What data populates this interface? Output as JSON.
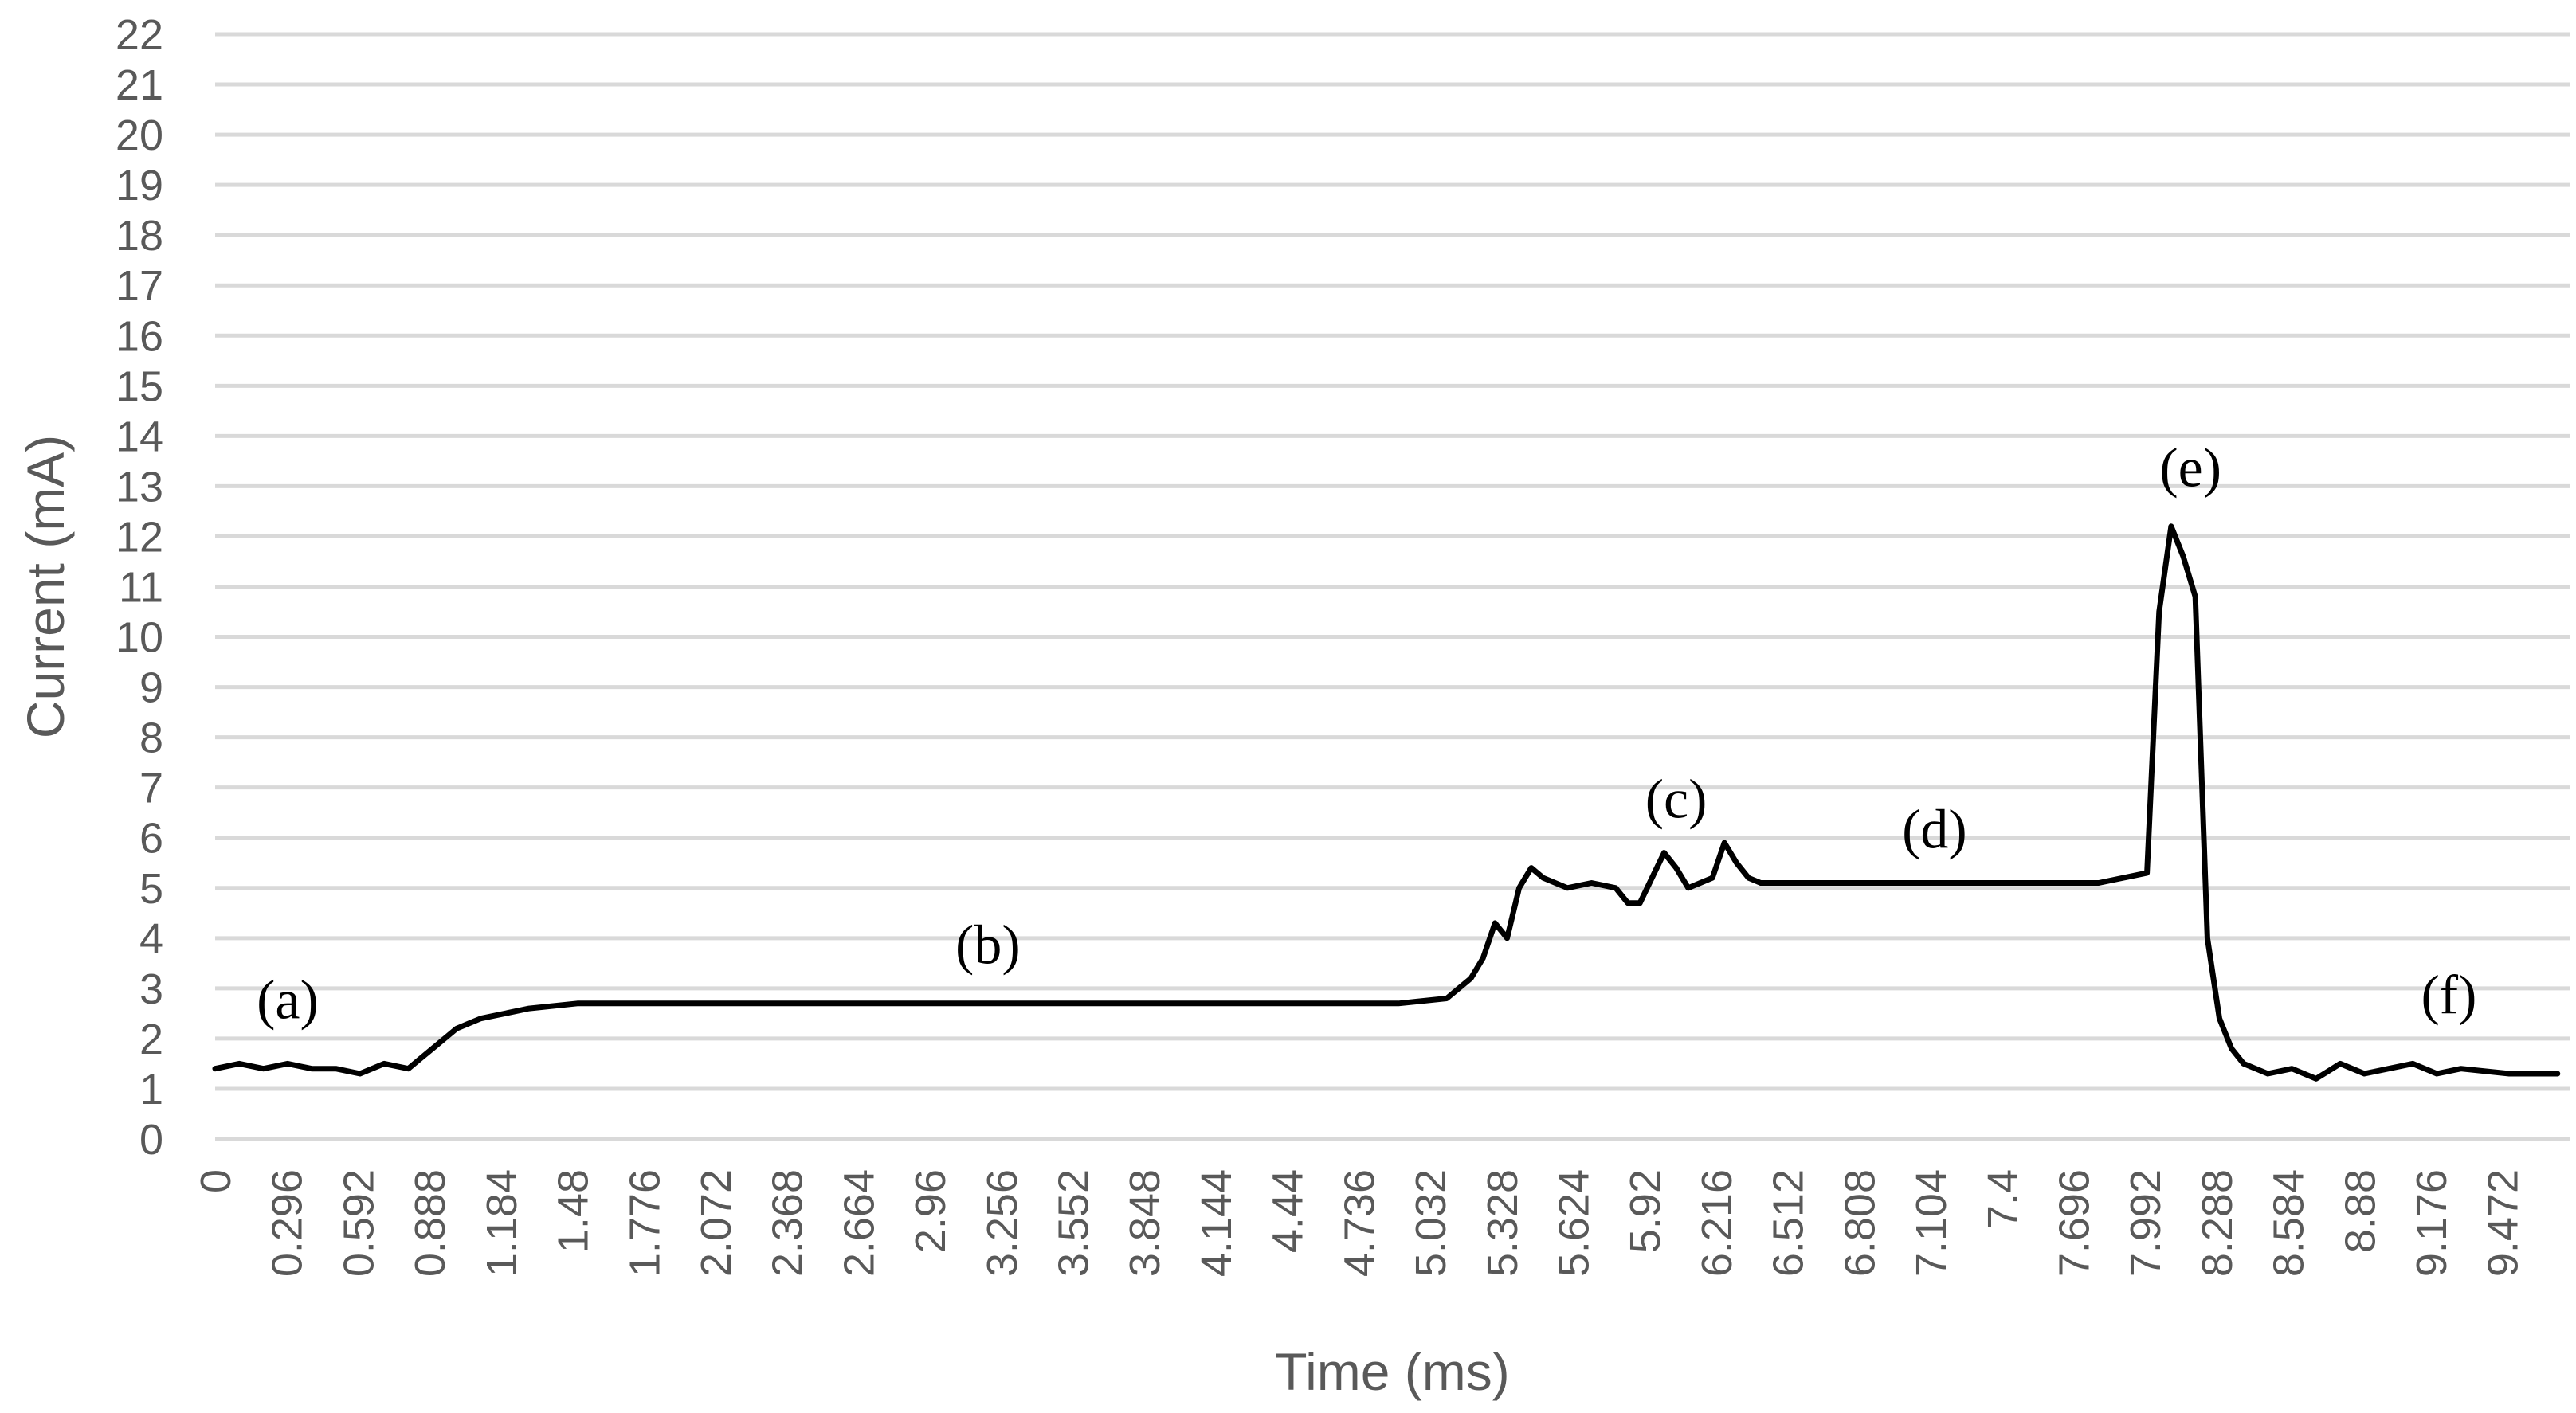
{
  "chart_data": {
    "type": "line",
    "title": "",
    "xlabel": "Time (ms)",
    "ylabel": "Current (mA)",
    "ylim": [
      0,
      22
    ],
    "xlim": [
      0,
      9.75
    ],
    "grid": true,
    "legend": "none",
    "y_ticks": [
      "0",
      "1",
      "2",
      "3",
      "4",
      "5",
      "6",
      "7",
      "8",
      "9",
      "10",
      "11",
      "12",
      "13",
      "14",
      "15",
      "16",
      "17",
      "18",
      "19",
      "20",
      "21",
      "22"
    ],
    "x_ticks": [
      "0",
      "0.296",
      "0.592",
      "0.888",
      "1.184",
      "1.48",
      "1.776",
      "2.072",
      "2.368",
      "2.664",
      "2.96",
      "3.256",
      "3.552",
      "3.848",
      "4.144",
      "4.44",
      "4.736",
      "5.032",
      "5.328",
      "5.624",
      "5.92",
      "6.216",
      "6.512",
      "6.808",
      "7.104",
      "7.4",
      "7.696",
      "7.992",
      "8.288",
      "8.584",
      "8.88",
      "9.176",
      "9.472"
    ],
    "series": [
      {
        "color": "#000000",
        "x": [
          0,
          0.1,
          0.2,
          0.3,
          0.4,
          0.5,
          0.6,
          0.7,
          0.8,
          0.85,
          0.9,
          0.95,
          1.0,
          1.05,
          1.1,
          1.2,
          1.3,
          1.5,
          2.0,
          2.5,
          3.0,
          3.5,
          4.0,
          4.5,
          4.9,
          5.1,
          5.15,
          5.2,
          5.25,
          5.3,
          5.35,
          5.4,
          5.45,
          5.5,
          5.6,
          5.7,
          5.8,
          5.85,
          5.9,
          5.95,
          6.0,
          6.05,
          6.1,
          6.15,
          6.2,
          6.25,
          6.3,
          6.35,
          6.4,
          6.5,
          6.6,
          7.0,
          7.4,
          7.8,
          8.0,
          8.05,
          8.1,
          8.15,
          8.2,
          8.25,
          8.3,
          8.35,
          8.4,
          8.45,
          8.5,
          8.6,
          8.7,
          8.8,
          8.9,
          9.0,
          9.1,
          9.2,
          9.3,
          9.5,
          9.7
        ],
        "y": [
          1.4,
          1.5,
          1.4,
          1.5,
          1.4,
          1.4,
          1.3,
          1.5,
          1.4,
          1.6,
          1.8,
          2.0,
          2.2,
          2.3,
          2.4,
          2.5,
          2.6,
          2.7,
          2.7,
          2.7,
          2.7,
          2.7,
          2.7,
          2.7,
          2.7,
          2.8,
          3.0,
          3.2,
          3.6,
          4.3,
          4.0,
          5.0,
          5.4,
          5.2,
          5.0,
          5.1,
          5.0,
          4.7,
          4.7,
          5.2,
          5.7,
          5.4,
          5.0,
          5.1,
          5.2,
          5.9,
          5.5,
          5.2,
          5.1,
          5.1,
          5.1,
          5.1,
          5.1,
          5.1,
          5.3,
          10.5,
          12.2,
          11.6,
          10.8,
          4.0,
          2.4,
          1.8,
          1.5,
          1.4,
          1.3,
          1.4,
          1.2,
          1.5,
          1.3,
          1.4,
          1.5,
          1.3,
          1.4,
          1.3,
          1.3
        ]
      }
    ],
    "annotations": [
      {
        "label": "(a)",
        "x": 0.3,
        "y": 2.4
      },
      {
        "label": "(b)",
        "x": 3.2,
        "y": 3.5
      },
      {
        "label": "(c)",
        "x": 6.05,
        "y": 6.4
      },
      {
        "label": "(d)",
        "x": 7.12,
        "y": 5.8
      },
      {
        "label": "(e)",
        "x": 8.18,
        "y": 13.0
      },
      {
        "label": "(f)",
        "x": 9.25,
        "y": 2.5
      }
    ]
  }
}
